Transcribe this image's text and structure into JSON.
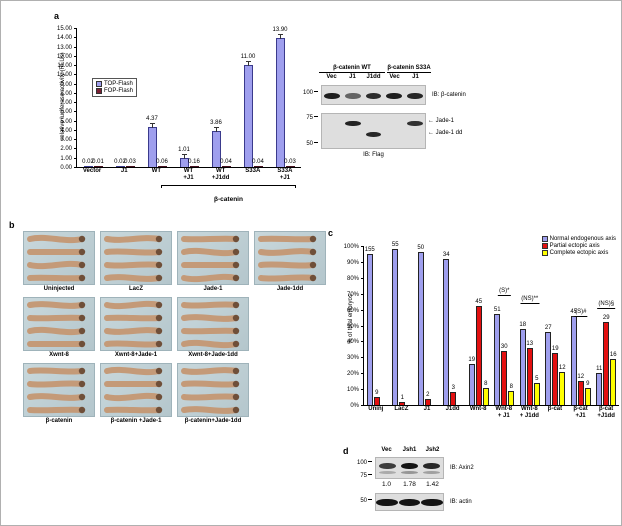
{
  "panel_labels": {
    "a": "a",
    "b": "b",
    "c": "c",
    "d": "d"
  },
  "icons": {
    "left_arrow": "←"
  },
  "chart_data": [
    {
      "id": "luciferase",
      "type": "bar",
      "title": "",
      "ylabel": "relative luciferase activity (RLUs)",
      "ylim": [
        0,
        15
      ],
      "ytick_step": 1,
      "categories": [
        "Vector",
        "J1",
        "WT",
        "WT\n+J1",
        "WT\n+J1dd",
        "S33A",
        "S33A\n+J1"
      ],
      "group_bracket": {
        "label": "β-catenin",
        "from": "WT",
        "to": "S33A\n+J1"
      },
      "legend_position": "upper-left",
      "series": [
        {
          "name": "TOP-Flash",
          "color": "#9f9fee",
          "border": "#3a3a8c",
          "error_bars": true,
          "values": [
            0.02,
            0.02,
            4.37,
            1.01,
            3.86,
            11.0,
            13.9
          ],
          "labels": [
            "0.02",
            "0.02",
            "4.37",
            "1.01",
            "3.86",
            "11.00",
            "13.90"
          ]
        },
        {
          "name": "FOP-Flash",
          "color": "#7a1f33",
          "border": "#471020",
          "values": [
            0.01,
            0.03,
            0.06,
            0.16,
            0.04,
            0.04,
            0.03
          ],
          "labels": [
            "0.01",
            "0.03",
            "0.06",
            "0.16",
            "0.04",
            "0.04",
            "0.03"
          ]
        }
      ]
    },
    {
      "id": "embryo-axis",
      "type": "bar",
      "title": "",
      "ylabel": "% of total embryos",
      "ylim": [
        0,
        100
      ],
      "ytick_step": 10,
      "ytick_suffix": "%",
      "legend_position": "upper-right",
      "categories": [
        "Uninj",
        "LacZ",
        "J1",
        "J1dd",
        "Wnt-8",
        "Wnt-8\n+ J1",
        "Wnt-8\n+ J1dd",
        "β-cat",
        "β-cat\n+J1",
        "β-cat\n+J1dd"
      ],
      "series": [
        {
          "name": "Normal endogenous axis",
          "color": "#9f9fee",
          "border": "#222",
          "values": [
            95,
            98,
            96,
            92,
            26,
            57,
            48,
            46,
            56,
            20
          ],
          "labels": [
            "155",
            "55",
            "50",
            "34",
            "19",
            "51",
            "18",
            "27",
            "45",
            "11"
          ]
        },
        {
          "name": "Partial ectopic axis",
          "color": "#e31010",
          "border": "#222",
          "values": [
            5,
            2,
            4,
            8,
            62,
            34,
            36,
            33,
            15,
            52
          ],
          "labels": [
            "9",
            "1",
            "2",
            "3",
            "45",
            "30",
            "13",
            "19",
            "12",
            "29"
          ]
        },
        {
          "name": "Complete ectopic axis",
          "color": "#ffff00",
          "border": "#222",
          "values": [
            0,
            0,
            0,
            0,
            11,
            9,
            14,
            21,
            11,
            29
          ],
          "labels": [
            "",
            "",
            "",
            "",
            "8",
            "8",
            "5",
            "12",
            "9",
            "16"
          ]
        }
      ],
      "annotations": [
        {
          "group": 5,
          "label": "(S)*",
          "y_pct": 68
        },
        {
          "group": 6,
          "label": "(NS)**",
          "y_pct": 63
        },
        {
          "group": 8,
          "label": "(S)#",
          "y_pct": 55
        },
        {
          "group": 9,
          "label": "(NS)§",
          "y_pct": 60
        }
      ]
    }
  ],
  "blot_a": {
    "group_headers": [
      "β-catenin WT",
      "β-catenin S33A"
    ],
    "lanes": [
      "Vec",
      "J1",
      "J1dd",
      "Vec",
      "J1"
    ],
    "blot1": {
      "ib": "IB: β-catenin",
      "marker": "100",
      "bands": [
        0.95,
        0.6,
        0.88,
        0.95,
        0.9
      ]
    },
    "blot2": {
      "ib": "IB: Flag",
      "markers": [
        "75",
        "50"
      ],
      "upper_bands": [
        0,
        0.92,
        0,
        0,
        0.85
      ],
      "lower_bands": [
        0,
        0,
        0.9,
        0,
        0
      ],
      "arrow_labels": [
        "Jade-1",
        "Jade-1 dd"
      ]
    }
  },
  "panel_b": {
    "rows": [
      [
        "Uninjected",
        "LacZ",
        "Jade-1",
        "Jade-1dd"
      ],
      [
        "Xwnt-8",
        "Xwnt-8+Jade-1",
        "Xwnt-8+Jade-1dd"
      ],
      [
        "β-catenin",
        "β-catenin +Jade-1",
        "β-catenin+Jade-1dd"
      ]
    ]
  },
  "panel_d": {
    "lanes": [
      "Vec",
      "Jsh1",
      "Jsh2"
    ],
    "blot1": {
      "ib": "IB: Axin2",
      "markers": [
        "100",
        "75"
      ],
      "bands": [
        0.8,
        1,
        0.9
      ],
      "smear": [
        0.25,
        0.35,
        0.3
      ],
      "quant": [
        "1.0",
        "1.78",
        "1.42"
      ]
    },
    "blot2": {
      "ib": "IB: actin",
      "marker": "50",
      "bands": [
        1,
        1,
        1
      ]
    }
  }
}
